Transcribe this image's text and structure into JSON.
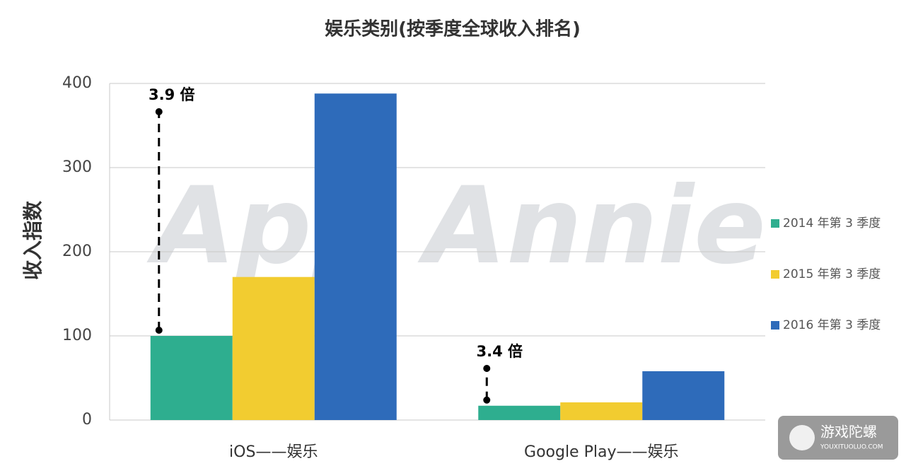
{
  "chart_data": {
    "type": "bar",
    "title": "娱乐类别(按季度全球收入排名)",
    "y_label": "收入指数",
    "categories": [
      "iOS——娱乐",
      "Google Play——娱乐"
    ],
    "series": [
      {
        "name": "2014 年第 3 季度",
        "color": "#2eae8f",
        "values": [
          100,
          17
        ]
      },
      {
        "name": "2015 年第 3 季度",
        "color": "#f2cc30",
        "values": [
          170,
          21
        ]
      },
      {
        "name": "2016 年第 3 季度",
        "color": "#2e6bba",
        "values": [
          388,
          58
        ]
      }
    ],
    "ylim": [
      0,
      400
    ],
    "yticks": [
      0,
      100,
      200,
      300,
      400
    ],
    "grid": true,
    "legend": "right",
    "annotations": [
      "3.9 倍",
      "3.4 倍"
    ],
    "watermark": "App Annie",
    "logo": {
      "name": "游戏陀螺",
      "url": "YOUXITUOLUO.COM"
    }
  }
}
